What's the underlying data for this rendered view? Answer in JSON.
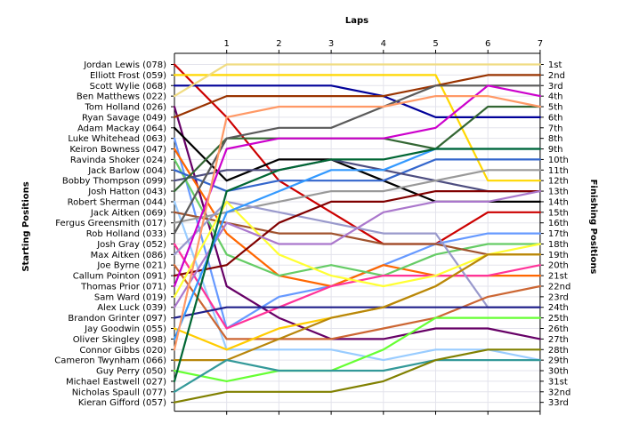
{
  "chart_data": {
    "type": "line",
    "title": "Laps",
    "ylabel_left": "Starting Positions",
    "ylabel_right": "Finishing Positions",
    "x": [
      0,
      1,
      2,
      3,
      4,
      5,
      6,
      7
    ],
    "x_tick_labels": [
      "1",
      "2",
      "3",
      "4",
      "5",
      "6",
      "7"
    ],
    "ylim": [
      1,
      33
    ],
    "finishing_labels": [
      "1st",
      "2nd",
      "3rd",
      "4th",
      "5th",
      "6th",
      "7th",
      "8th",
      "9th",
      "10th",
      "11th",
      "12th",
      "13th",
      "14th",
      "15th",
      "16th",
      "17th",
      "18th",
      "19th",
      "20th",
      "21st",
      "22nd",
      "23rd",
      "24th",
      "25th",
      "26th",
      "27th",
      "28th",
      "29th",
      "30th",
      "31st",
      "32nd",
      "33rd"
    ],
    "series": [
      {
        "name": "Jordan Lewis (078)",
        "color": "#cc0000",
        "values": [
          1,
          6,
          12,
          15,
          18,
          18,
          15,
          15
        ]
      },
      {
        "name": "Elliott Frost (059)",
        "color": "#ffd700",
        "values": [
          2,
          2,
          2,
          2,
          2,
          2,
          12,
          12
        ]
      },
      {
        "name": "Scott Wylie (068)",
        "color": "#000099",
        "values": [
          3,
          3,
          3,
          3,
          4,
          6,
          6,
          6
        ]
      },
      {
        "name": "Ben Matthews (022)",
        "color": "#f0dc82",
        "values": [
          4,
          1,
          1,
          1,
          1,
          1,
          1,
          1
        ]
      },
      {
        "name": "Tom Holland (026)",
        "color": "#660066",
        "values": [
          5,
          22,
          25,
          27,
          27,
          26,
          26,
          27
        ]
      },
      {
        "name": "Ryan Savage (049)",
        "color": "#993300",
        "values": [
          6,
          4,
          4,
          4,
          4,
          3,
          2,
          2
        ]
      },
      {
        "name": "Adam Mackay (064)",
        "color": "#000000",
        "values": [
          7,
          12,
          10,
          10,
          12,
          14,
          14,
          14
        ]
      },
      {
        "name": "Luke Whitehead (063)",
        "color": "#6699ff",
        "values": [
          8,
          26,
          23,
          22,
          20,
          18,
          17,
          17
        ]
      },
      {
        "name": "Keiron Bowness (047)",
        "color": "#ff6600",
        "values": [
          9,
          17,
          21,
          22,
          20,
          21,
          21,
          21
        ]
      },
      {
        "name": "Ravinda Shoker (024)",
        "color": "#66cc66",
        "values": [
          10,
          19,
          21,
          20,
          21,
          19,
          18,
          18
        ]
      },
      {
        "name": "Jack Barlow (004)",
        "color": "#3366cc",
        "values": [
          11,
          13,
          12,
          12,
          12,
          10,
          10,
          10
        ]
      },
      {
        "name": "Bobby Thompson (099)",
        "color": "#4d4d80",
        "values": [
          12,
          11,
          11,
          10,
          11,
          12,
          13,
          13
        ]
      },
      {
        "name": "Josh Hatton (043)",
        "color": "#336633",
        "values": [
          13,
          8,
          8,
          8,
          8,
          9,
          5,
          5
        ]
      },
      {
        "name": "Robert Sherman (044)",
        "color": "#99ccff",
        "values": [
          14,
          28,
          28,
          28,
          29,
          28,
          28,
          29
        ]
      },
      {
        "name": "Jack Aitken (069)",
        "color": "#a0522d",
        "values": [
          15,
          16,
          17,
          17,
          18,
          18,
          19,
          19
        ]
      },
      {
        "name": "Fergus Greensmith (017)",
        "color": "#999999",
        "values": [
          16,
          15,
          14,
          13,
          13,
          12,
          11,
          11
        ]
      },
      {
        "name": "Rob Holland (033)",
        "color": "#5a5a5a",
        "values": [
          17,
          8,
          7,
          7,
          5,
          3,
          3,
          3
        ]
      },
      {
        "name": "Josh Gray (052)",
        "color": "#ff3399",
        "values": [
          18,
          26,
          24,
          22,
          21,
          21,
          21,
          20
        ]
      },
      {
        "name": "Max Aitken (086)",
        "color": "#9999cc",
        "values": [
          19,
          14,
          15,
          16,
          17,
          17,
          24,
          24
        ]
      },
      {
        "name": "Joe Byrne (021)",
        "color": "#cc6633",
        "values": [
          20,
          27,
          27,
          27,
          26,
          25,
          23,
          22
        ]
      },
      {
        "name": "Callum Pointon (091)",
        "color": "#800000",
        "values": [
          21,
          20,
          16,
          14,
          14,
          13,
          13,
          13
        ]
      },
      {
        "name": "Thomas Prior (071)",
        "color": "#cc00cc",
        "values": [
          22,
          9,
          8,
          8,
          8,
          7,
          3,
          4
        ]
      },
      {
        "name": "Sam Ward (019)",
        "color": "#ffff33",
        "values": [
          23,
          14,
          19,
          21,
          22,
          21,
          19,
          18
        ]
      },
      {
        "name": "Alex Luck (039)",
        "color": "#aa77cc",
        "values": [
          24,
          16,
          18,
          18,
          15,
          14,
          14,
          13
        ]
      },
      {
        "name": "Brandon Grinter (097)",
        "color": "#20208a",
        "values": [
          25,
          24,
          24,
          24,
          24,
          24,
          24,
          24
        ]
      },
      {
        "name": "Jay Goodwin (055)",
        "color": "#ffcc00",
        "values": [
          26,
          28,
          26,
          25,
          24,
          22,
          19,
          19
        ]
      },
      {
        "name": "Oliver Skingley (098)",
        "color": "#3399ff",
        "values": [
          27,
          15,
          13,
          11,
          11,
          9,
          9,
          9
        ]
      },
      {
        "name": "Connor Gibbs (020)",
        "color": "#ff9966",
        "values": [
          28,
          6,
          5,
          5,
          5,
          4,
          4,
          5
        ]
      },
      {
        "name": "Cameron Twynham (066)",
        "color": "#b8860b",
        "values": [
          29,
          29,
          27,
          25,
          24,
          22,
          19,
          19
        ]
      },
      {
        "name": "Guy Perry (050)",
        "color": "#66ff33",
        "values": [
          30,
          31,
          30,
          30,
          28,
          25,
          25,
          25
        ]
      },
      {
        "name": "Michael Eastwell (027)",
        "color": "#006633",
        "values": [
          31,
          13,
          11,
          10,
          10,
          9,
          9,
          9
        ]
      },
      {
        "name": "Nicholas Spaull (077)",
        "color": "#339999",
        "values": [
          32,
          29,
          30,
          30,
          30,
          29,
          29,
          29
        ]
      },
      {
        "name": "Kieran Gifford (057)",
        "color": "#808000",
        "values": [
          33,
          32,
          32,
          32,
          31,
          29,
          28,
          28
        ]
      }
    ]
  }
}
